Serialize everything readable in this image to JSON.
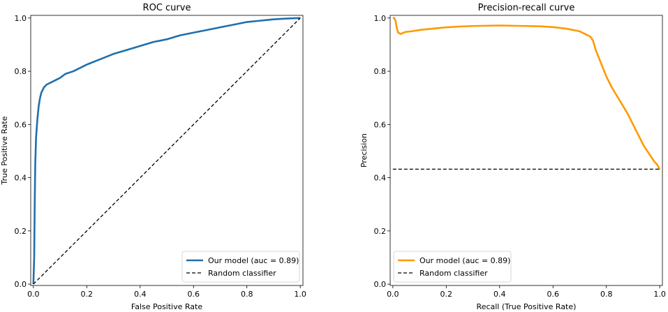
{
  "chart_data": [
    {
      "type": "line",
      "title": "ROC curve",
      "xlabel": "False Positive Rate",
      "ylabel": "True Positive Rate",
      "xlim": [
        -0.01,
        1.01
      ],
      "ylim": [
        -0.005,
        1.01
      ],
      "xticks": [
        0.0,
        0.2,
        0.4,
        0.6,
        0.8,
        1.0
      ],
      "yticks": [
        0.0,
        0.2,
        0.4,
        0.6,
        0.8,
        1.0
      ],
      "xtick_labels": [
        "0.0",
        "0.2",
        "0.4",
        "0.6",
        "0.8",
        "1.0"
      ],
      "ytick_labels": [
        "0.0",
        "0.2",
        "0.4",
        "0.6",
        "0.8",
        "1.0"
      ],
      "legend_position": "bottom-right",
      "series": [
        {
          "name": "Our model (auc = 0.89)",
          "color": "#1f6fad",
          "style": "solid",
          "x": [
            0.0,
            0.003,
            0.005,
            0.007,
            0.01,
            0.015,
            0.02,
            0.025,
            0.03,
            0.04,
            0.05,
            0.06,
            0.08,
            0.1,
            0.12,
            0.15,
            0.2,
            0.25,
            0.3,
            0.35,
            0.4,
            0.45,
            0.5,
            0.55,
            0.6,
            0.65,
            0.7,
            0.75,
            0.8,
            0.85,
            0.9,
            0.95,
            1.0
          ],
          "y": [
            0.0,
            0.1,
            0.3,
            0.45,
            0.55,
            0.62,
            0.67,
            0.7,
            0.72,
            0.74,
            0.75,
            0.755,
            0.765,
            0.775,
            0.79,
            0.8,
            0.825,
            0.845,
            0.865,
            0.88,
            0.895,
            0.91,
            0.92,
            0.935,
            0.945,
            0.955,
            0.965,
            0.975,
            0.985,
            0.99,
            0.995,
            0.998,
            1.0
          ]
        },
        {
          "name": "Random classifier",
          "color": "#000000",
          "style": "dashed",
          "x": [
            0.0,
            1.0
          ],
          "y": [
            0.0,
            1.0
          ]
        }
      ]
    },
    {
      "type": "line",
      "title": "Precision-recall curve",
      "xlabel": "Recall (True Positive Rate)",
      "ylabel": "Precision",
      "xlim": [
        -0.01,
        1.01
      ],
      "ylim": [
        -0.005,
        1.01
      ],
      "xticks": [
        0.0,
        0.2,
        0.4,
        0.6,
        0.8,
        1.0
      ],
      "yticks": [
        0.0,
        0.2,
        0.4,
        0.6,
        0.8,
        1.0
      ],
      "xtick_labels": [
        "0.0",
        "0.2",
        "0.4",
        "0.6",
        "0.8",
        "1.0"
      ],
      "ytick_labels": [
        "0.0",
        "0.2",
        "0.4",
        "0.6",
        "0.8",
        "1.0"
      ],
      "legend_position": "bottom-left",
      "series": [
        {
          "name": "Our model (auc = 0.89)",
          "color": "#ff9900",
          "style": "solid",
          "x": [
            0.0,
            0.005,
            0.01,
            0.015,
            0.02,
            0.03,
            0.04,
            0.05,
            0.07,
            0.1,
            0.15,
            0.2,
            0.25,
            0.3,
            0.35,
            0.4,
            0.45,
            0.5,
            0.55,
            0.6,
            0.65,
            0.7,
            0.72,
            0.74,
            0.75,
            0.76,
            0.78,
            0.8,
            0.82,
            0.85,
            0.88,
            0.9,
            0.92,
            0.94,
            0.96,
            0.98,
            0.99,
            1.0
          ],
          "y": [
            1.0,
            1.0,
            0.99,
            0.96,
            0.945,
            0.94,
            0.945,
            0.948,
            0.95,
            0.955,
            0.96,
            0.965,
            0.968,
            0.97,
            0.971,
            0.972,
            0.971,
            0.97,
            0.969,
            0.966,
            0.96,
            0.95,
            0.94,
            0.93,
            0.915,
            0.88,
            0.83,
            0.78,
            0.74,
            0.69,
            0.64,
            0.6,
            0.56,
            0.52,
            0.49,
            0.46,
            0.45,
            0.43
          ]
        },
        {
          "name": "Random classifier",
          "color": "#000000",
          "style": "dashed",
          "x": [
            0.0,
            1.0
          ],
          "y": [
            0.432,
            0.432
          ]
        }
      ]
    }
  ]
}
